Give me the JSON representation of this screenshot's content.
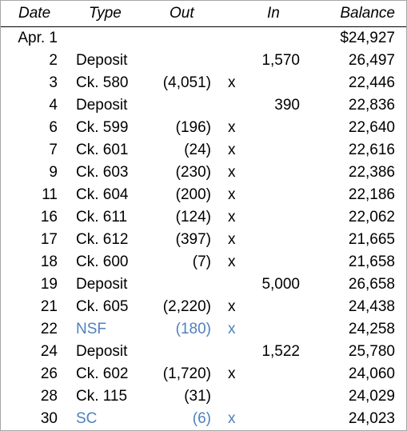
{
  "headers": {
    "date": "Date",
    "type": "Type",
    "out": "Out",
    "in": "In",
    "balance": "Balance"
  },
  "colors": {
    "highlight": "#4f81bd",
    "border": "#a6a6a6",
    "text": "#000000"
  },
  "rows": [
    {
      "date": "Apr. 1",
      "type": "",
      "out": "",
      "mark": "",
      "in": "",
      "balance": "$24,927",
      "highlight": false
    },
    {
      "date": "2",
      "type": "Deposit",
      "out": "",
      "mark": "",
      "in": "1,570",
      "balance": "26,497",
      "highlight": false
    },
    {
      "date": "3",
      "type": "Ck. 580",
      "out": "(4,051)",
      "mark": "x",
      "in": "",
      "balance": "22,446",
      "highlight": false
    },
    {
      "date": "4",
      "type": "Deposit",
      "out": "",
      "mark": "",
      "in": "390",
      "balance": "22,836",
      "highlight": false
    },
    {
      "date": "6",
      "type": "Ck. 599",
      "out": "(196)",
      "mark": "x",
      "in": "",
      "balance": "22,640",
      "highlight": false
    },
    {
      "date": "7",
      "type": "Ck. 601",
      "out": "(24)",
      "mark": "x",
      "in": "",
      "balance": "22,616",
      "highlight": false
    },
    {
      "date": "9",
      "type": "Ck. 603",
      "out": "(230)",
      "mark": "x",
      "in": "",
      "balance": "22,386",
      "highlight": false
    },
    {
      "date": "11",
      "type": "Ck. 604",
      "out": "(200)",
      "mark": "x",
      "in": "",
      "balance": "22,186",
      "highlight": false
    },
    {
      "date": "16",
      "type": "Ck. 611",
      "out": "(124)",
      "mark": "x",
      "in": "",
      "balance": "22,062",
      "highlight": false
    },
    {
      "date": "17",
      "type": "Ck. 612",
      "out": "(397)",
      "mark": "x",
      "in": "",
      "balance": "21,665",
      "highlight": false
    },
    {
      "date": "18",
      "type": "Ck. 600",
      "out": "(7)",
      "mark": "x",
      "in": "",
      "balance": "21,658",
      "highlight": false
    },
    {
      "date": "19",
      "type": "Deposit",
      "out": "",
      "mark": "",
      "in": "5,000",
      "balance": "26,658",
      "highlight": false
    },
    {
      "date": "21",
      "type": "Ck. 605",
      "out": "(2,220)",
      "mark": "x",
      "in": "",
      "balance": "24,438",
      "highlight": false
    },
    {
      "date": "22",
      "type": "NSF",
      "out": "(180)",
      "mark": "x",
      "in": "",
      "balance": "24,258",
      "highlight": true
    },
    {
      "date": "24",
      "type": "Deposit",
      "out": "",
      "mark": "",
      "in": "1,522",
      "balance": "25,780",
      "highlight": false
    },
    {
      "date": "26",
      "type": "Ck. 602",
      "out": "(1,720)",
      "mark": "x",
      "in": "",
      "balance": "24,060",
      "highlight": false
    },
    {
      "date": "28",
      "type": "Ck. 115",
      "out": "(31)",
      "mark": "",
      "in": "",
      "balance": "24,029",
      "highlight": false
    },
    {
      "date": "30",
      "type": "SC",
      "out": "(6)",
      "mark": "x",
      "in": "",
      "balance": "24,023",
      "highlight": true
    }
  ]
}
